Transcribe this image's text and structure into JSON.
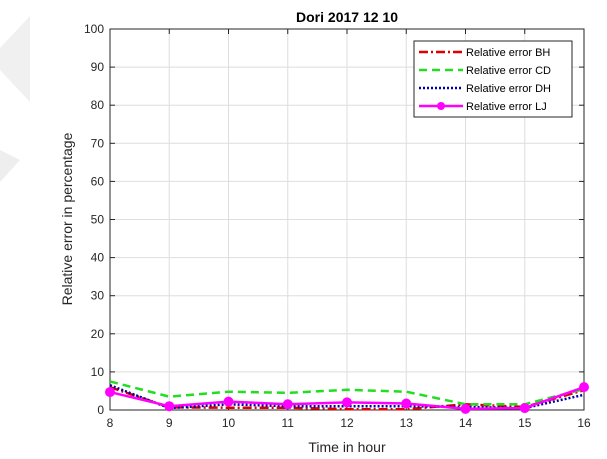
{
  "chart_data": {
    "type": "line",
    "title": "Dori 2017 12 10",
    "xlabel": "Time in hour",
    "ylabel": "Relative error in percentage",
    "xlim": [
      8,
      16
    ],
    "ylim": [
      0,
      100
    ],
    "xticks": [
      8,
      9,
      10,
      11,
      12,
      13,
      14,
      15,
      16
    ],
    "yticks": [
      0,
      10,
      20,
      30,
      40,
      50,
      60,
      70,
      80,
      90,
      100
    ],
    "grid": true,
    "legend_position": "top-right",
    "x": [
      8,
      9,
      10,
      11,
      12,
      13,
      14,
      15,
      16
    ],
    "series": [
      {
        "name": "Relative error BH",
        "color": "#dd0000",
        "style": "dash-dot",
        "values": [
          6.0,
          0.7,
          0.6,
          0.6,
          0.2,
          0.2,
          1.5,
          0.8,
          5.2
        ]
      },
      {
        "name": "Relative error CD",
        "color": "#22dd22",
        "style": "dashed",
        "values": [
          7.5,
          3.5,
          4.8,
          4.5,
          5.3,
          4.8,
          1.5,
          1.5,
          5.5
        ]
      },
      {
        "name": "Relative error DH",
        "color": "#0000aa",
        "style": "dotted",
        "values": [
          6.5,
          0.5,
          1.5,
          1.0,
          1.0,
          1.0,
          0.8,
          0.5,
          4.0
        ]
      },
      {
        "name": "Relative error LJ",
        "color": "#ff00ff",
        "style": "solid-marker",
        "values": [
          4.7,
          1.0,
          2.2,
          1.5,
          2.0,
          1.7,
          0.3,
          0.5,
          6.0
        ]
      }
    ]
  }
}
